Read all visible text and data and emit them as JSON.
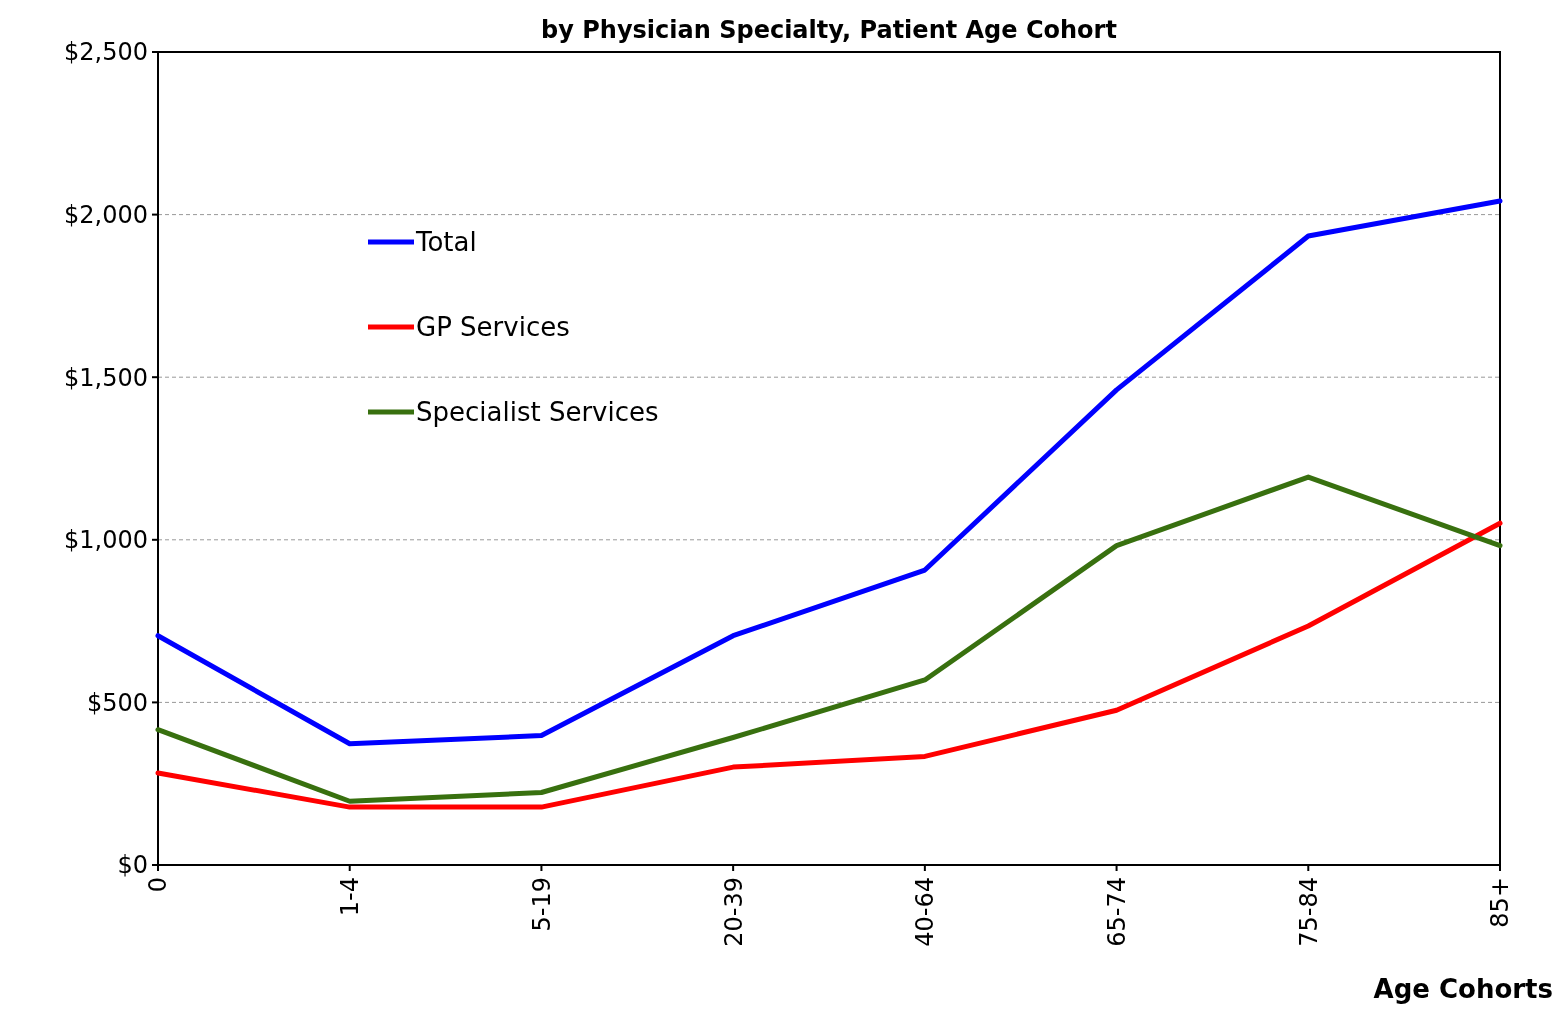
{
  "chart_data": {
    "type": "line",
    "title": "by Physician Specialty, Patient Age Cohort",
    "xlabel": "Age Cohorts",
    "categories": [
      "0",
      "1-4",
      "5-19",
      "20-39",
      "40-64",
      "65-74",
      "75-84",
      "85+"
    ],
    "series": [
      {
        "name": "Total",
        "color": "#0000ff",
        "values": [
          705,
          373,
          398,
          705,
          907,
          1461,
          1934,
          2042
        ]
      },
      {
        "name": "GP Services",
        "color": "#ff0000",
        "values": [
          283,
          178,
          178,
          301,
          334,
          476,
          735,
          1051
        ]
      },
      {
        "name": "Specialist Services",
        "color": "#38700f",
        "values": [
          416,
          196,
          223,
          392,
          569,
          982,
          1193,
          982
        ]
      }
    ],
    "ylim": [
      0,
      2500
    ],
    "yticks": [
      {
        "value": 0,
        "label": "$0"
      },
      {
        "value": 500,
        "label": "$500"
      },
      {
        "value": 1000,
        "label": "$1,000"
      },
      {
        "value": 1500,
        "label": "$1,500"
      },
      {
        "value": 2000,
        "label": "$2,000"
      },
      {
        "value": 2500,
        "label": "$2,500"
      }
    ],
    "grid": "y",
    "legend": "top left",
    "marker": "none",
    "line_style": "solid"
  }
}
